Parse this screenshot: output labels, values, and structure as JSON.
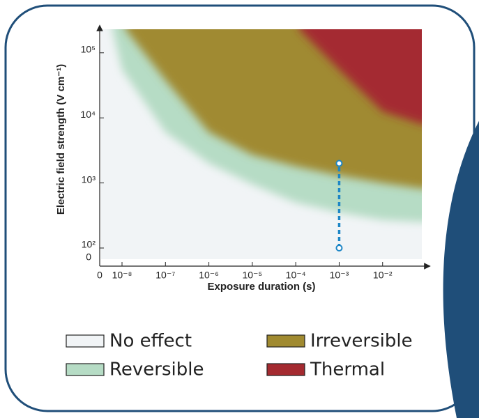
{
  "chart_data": {
    "type": "region",
    "xlabel": "Exposure duration (s)",
    "ylabel": "Electric field strength (V cm⁻¹)",
    "log_x": true,
    "log_y": true,
    "xlim": [
      1e-08,
      0.08
    ],
    "ylim": [
      100,
      230000
    ],
    "xticks": [
      {
        "value": 1e-08,
        "label": "10⁻⁸"
      },
      {
        "value": 1e-07,
        "label": "10⁻⁷"
      },
      {
        "value": 1e-06,
        "label": "10⁻⁶"
      },
      {
        "value": 1e-05,
        "label": "10⁻⁵"
      },
      {
        "value": 0.0001,
        "label": "10⁻⁴"
      },
      {
        "value": 0.001,
        "label": "10⁻³"
      },
      {
        "value": 0.01,
        "label": "10⁻²"
      }
    ],
    "yticks": [
      {
        "value": 100,
        "label": "10²"
      },
      {
        "value": 1000,
        "label": "10³"
      },
      {
        "value": 10000,
        "label": "10⁴"
      },
      {
        "value": 100000,
        "label": "10⁵"
      }
    ],
    "x_zero_label": "0",
    "y_zero_label": "0",
    "background": {
      "name": "No effect",
      "color": "#f1f4f6"
    },
    "series": [
      {
        "name": "Reversible",
        "color": "#b6dcc5",
        "x": [
          6e-09,
          1e-08,
          1e-07,
          1e-06,
          1e-05,
          0.0001,
          0.001,
          0.01,
          0.08
        ],
        "values": [
          230000,
          55000,
          6000,
          2000,
          950,
          500,
          350,
          270,
          250
        ]
      },
      {
        "name": "Irreversible",
        "color": "#a08a30",
        "x": [
          1.2e-08,
          1e-07,
          1e-06,
          1e-05,
          0.0001,
          0.001,
          0.01,
          0.08
        ],
        "values": [
          230000,
          38000,
          6000,
          2700,
          1800,
          1300,
          1000,
          820
        ]
      },
      {
        "name": "Thermal",
        "color": "#a42a30",
        "x": [
          0.00012,
          0.001,
          0.01,
          0.08
        ],
        "values": [
          230000,
          55000,
          12500,
          8000
        ]
      }
    ],
    "marker_line": {
      "color": "#1d86c6",
      "x": 0.001,
      "values": [
        100,
        2000
      ]
    }
  }
}
